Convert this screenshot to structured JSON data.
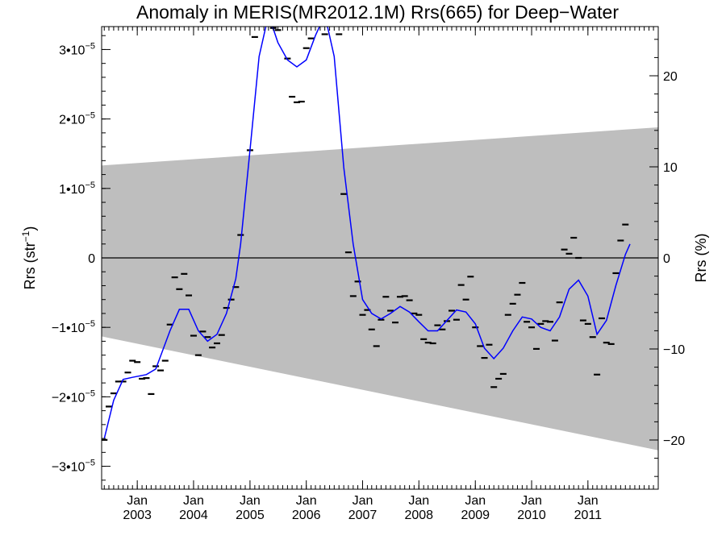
{
  "chart_data": {
    "type": "scatter",
    "title": "Anomaly in MERIS(MR2012.1M) Rrs(665) for Deep−Water",
    "ylabel": "Rrs (str",
    "ylabel_sup": "−1",
    "ylabel_close": ")",
    "y2label": "Rrs (%)",
    "xlim": [
      "2002-05-15",
      "2012-04-01"
    ],
    "ylim": [
      -3.33e-05,
      3.33e-05
    ],
    "y2lim": [
      -25.4,
      25.4
    ],
    "x_ticks": [
      {
        "date": "2003-01-01",
        "month": "Jan",
        "year": "2003"
      },
      {
        "date": "2004-01-01",
        "month": "Jan",
        "year": "2004"
      },
      {
        "date": "2005-01-01",
        "month": "Jan",
        "year": "2005"
      },
      {
        "date": "2006-01-01",
        "month": "Jan",
        "year": "2006"
      },
      {
        "date": "2007-01-01",
        "month": "Jan",
        "year": "2007"
      },
      {
        "date": "2008-01-01",
        "month": "Jan",
        "year": "2008"
      },
      {
        "date": "2009-01-01",
        "month": "Jan",
        "year": "2009"
      },
      {
        "date": "2010-01-01",
        "month": "Jan",
        "year": "2010"
      },
      {
        "date": "2011-01-01",
        "month": "Jan",
        "year": "2011"
      }
    ],
    "y_ticks": [
      {
        "value": 3e-05,
        "label": "3•10",
        "exp": "−5"
      },
      {
        "value": 2e-05,
        "label": "2•10",
        "exp": "−5"
      },
      {
        "value": 1e-05,
        "label": "1•10",
        "exp": "−5"
      },
      {
        "value": 0,
        "label": "0",
        "exp": ""
      },
      {
        "value": -1e-05,
        "label": "−1•10",
        "exp": "−5"
      },
      {
        "value": -2e-05,
        "label": "−2•10",
        "exp": "−5"
      },
      {
        "value": -3e-05,
        "label": "−3•10",
        "exp": "−5"
      }
    ],
    "y2_ticks": [
      {
        "value": 20,
        "label": "20"
      },
      {
        "value": 10,
        "label": "10"
      },
      {
        "value": 0,
        "label": "0"
      },
      {
        "value": -10,
        "label": "−10"
      },
      {
        "value": -20,
        "label": "−20"
      }
    ],
    "band": {
      "start": "2002-05-15",
      "end": "2012-04-01",
      "upper": [
        1.33e-05,
        1.88e-05
      ],
      "lower": [
        -1.13e-05,
        -2.77e-05
      ],
      "color": "#bebebe"
    },
    "zero_line": 0,
    "series": [
      {
        "kind": "markers",
        "color": "#000000",
        "points": [
          [
            "2002-06-01",
            -2.62e-05
          ],
          [
            "2002-07-01",
            -2.14e-05
          ],
          [
            "2002-08-01",
            -1.95e-05
          ],
          [
            "2002-09-01",
            -1.78e-05
          ],
          [
            "2002-10-01",
            -1.78e-05
          ],
          [
            "2002-11-01",
            -1.65e-05
          ],
          [
            "2002-12-01",
            -1.48e-05
          ],
          [
            "2003-01-01",
            -1.5e-05
          ],
          [
            "2003-02-01",
            -1.74e-05
          ],
          [
            "2003-03-01",
            -1.73e-05
          ],
          [
            "2003-04-01",
            -1.96e-05
          ],
          [
            "2003-05-01",
            -1.56e-05
          ],
          [
            "2003-06-01",
            -1.62e-05
          ],
          [
            "2003-07-01",
            -1.48e-05
          ],
          [
            "2003-08-01",
            -9.6e-06
          ],
          [
            "2003-09-01",
            -2.8e-06
          ],
          [
            "2003-10-01",
            -4.5e-06
          ],
          [
            "2003-11-01",
            -2.3e-06
          ],
          [
            "2003-12-01",
            -5.4e-06
          ],
          [
            "2004-01-01",
            -1.12e-05
          ],
          [
            "2004-02-01",
            -1.4e-05
          ],
          [
            "2004-03-01",
            -1.06e-05
          ],
          [
            "2004-04-01",
            -1.14e-05
          ],
          [
            "2004-05-01",
            -1.29e-05
          ],
          [
            "2004-06-01",
            -1.23e-05
          ],
          [
            "2004-07-01",
            -1.11e-05
          ],
          [
            "2004-08-01",
            -7.2e-06
          ],
          [
            "2004-09-01",
            -6e-06
          ],
          [
            "2004-10-01",
            -4.2e-06
          ],
          [
            "2004-11-01",
            3.3e-06
          ],
          [
            "2005-01-01",
            1.55e-05
          ],
          [
            "2005-02-01",
            3.18e-05
          ],
          [
            "2005-04-01",
            3.43e-05
          ],
          [
            "2005-06-01",
            3.31e-05
          ],
          [
            "2005-07-01",
            3.28e-05
          ],
          [
            "2005-09-01",
            2.87e-05
          ],
          [
            "2005-10-01",
            2.32e-05
          ],
          [
            "2005-11-01",
            2.24e-05
          ],
          [
            "2005-12-01",
            2.25e-05
          ],
          [
            "2006-01-01",
            3.02e-05
          ],
          [
            "2006-02-01",
            3.16e-05
          ],
          [
            "2006-05-01",
            3.22e-05
          ],
          [
            "2006-08-01",
            3.22e-05
          ],
          [
            "2006-09-01",
            9.2e-06
          ],
          [
            "2006-10-01",
            8e-07
          ],
          [
            "2006-11-01",
            -5.5e-06
          ],
          [
            "2006-12-01",
            -3.4e-06
          ],
          [
            "2007-01-01",
            -8.2e-06
          ],
          [
            "2007-02-01",
            -7.5e-06
          ],
          [
            "2007-03-01",
            -1.03e-05
          ],
          [
            "2007-04-01",
            -1.27e-05
          ],
          [
            "2007-05-01",
            -8.9e-06
          ],
          [
            "2007-06-01",
            -5.6e-06
          ],
          [
            "2007-07-01",
            -7.6e-06
          ],
          [
            "2007-08-01",
            -9.3e-06
          ],
          [
            "2007-09-01",
            -5.6e-06
          ],
          [
            "2007-10-01",
            -5.5e-06
          ],
          [
            "2007-11-01",
            -6.1e-06
          ],
          [
            "2007-12-01",
            -8e-06
          ],
          [
            "2008-01-01",
            -8.2e-06
          ],
          [
            "2008-02-01",
            -1.17e-05
          ],
          [
            "2008-03-01",
            -1.22e-05
          ],
          [
            "2008-04-01",
            -1.23e-05
          ],
          [
            "2008-05-01",
            -9.7e-06
          ],
          [
            "2008-06-01",
            -1.03e-05
          ],
          [
            "2008-07-01",
            -9.1e-06
          ],
          [
            "2008-08-01",
            -7.6e-06
          ],
          [
            "2008-09-01",
            -8.9e-06
          ],
          [
            "2008-10-01",
            -3.9e-06
          ],
          [
            "2008-11-01",
            -6e-06
          ],
          [
            "2008-12-01",
            -2.7e-06
          ],
          [
            "2009-01-01",
            -1e-05
          ],
          [
            "2009-02-01",
            -1.27e-05
          ],
          [
            "2009-03-01",
            -1.44e-05
          ],
          [
            "2009-04-01",
            -1.25e-05
          ],
          [
            "2009-05-01",
            -1.86e-05
          ],
          [
            "2009-06-01",
            -1.74e-05
          ],
          [
            "2009-07-01",
            -1.67e-05
          ],
          [
            "2009-08-01",
            -8.2e-06
          ],
          [
            "2009-09-01",
            -6.6e-06
          ],
          [
            "2009-10-01",
            -5.3e-06
          ],
          [
            "2009-11-01",
            -3.6e-06
          ],
          [
            "2009-12-01",
            -9.2e-06
          ],
          [
            "2010-01-01",
            -1e-05
          ],
          [
            "2010-02-01",
            -1.31e-05
          ],
          [
            "2010-03-01",
            -9.5e-06
          ],
          [
            "2010-04-01",
            -9.1e-06
          ],
          [
            "2010-05-01",
            -9.2e-06
          ],
          [
            "2010-06-01",
            -1.19e-05
          ],
          [
            "2010-07-01",
            -6.4e-06
          ],
          [
            "2010-08-01",
            1.2e-06
          ],
          [
            "2010-09-01",
            6e-07
          ],
          [
            "2010-10-01",
            2.9e-06
          ],
          [
            "2010-11-01",
            0.0
          ],
          [
            "2010-12-01",
            -9e-06
          ],
          [
            "2011-01-01",
            -9.5e-06
          ],
          [
            "2011-02-01",
            -1.14e-05
          ],
          [
            "2011-03-01",
            -1.68e-05
          ],
          [
            "2011-04-01",
            -8.7e-06
          ],
          [
            "2011-05-01",
            -1.22e-05
          ],
          [
            "2011-06-01",
            -1.24e-05
          ],
          [
            "2011-07-01",
            -2.2e-06
          ],
          [
            "2011-08-01",
            2.5e-06
          ],
          [
            "2011-09-01",
            4.8e-06
          ]
        ]
      },
      {
        "kind": "line",
        "color": "#0000ff",
        "points": [
          [
            "2002-06-01",
            -2.6e-05
          ],
          [
            "2002-08-01",
            -2.05e-05
          ],
          [
            "2002-10-01",
            -1.75e-05
          ],
          [
            "2002-12-01",
            -1.72e-05
          ],
          [
            "2003-03-01",
            -1.68e-05
          ],
          [
            "2003-05-01",
            -1.6e-05
          ],
          [
            "2003-08-01",
            -1.05e-05
          ],
          [
            "2003-10-01",
            -7.4e-06
          ],
          [
            "2003-12-01",
            -7.4e-06
          ],
          [
            "2004-02-01",
            -1.05e-05
          ],
          [
            "2004-04-01",
            -1.2e-05
          ],
          [
            "2004-06-01",
            -1.1e-05
          ],
          [
            "2004-08-01",
            -8e-06
          ],
          [
            "2004-10-01",
            -3e-06
          ],
          [
            "2004-11-01",
            2e-06
          ],
          [
            "2005-01-01",
            1.55e-05
          ],
          [
            "2005-03-01",
            2.9e-05
          ],
          [
            "2005-05-01",
            3.5e-05
          ],
          [
            "2005-07-01",
            3.1e-05
          ],
          [
            "2005-09-01",
            2.85e-05
          ],
          [
            "2005-11-01",
            2.75e-05
          ],
          [
            "2006-01-01",
            2.85e-05
          ],
          [
            "2006-03-01",
            3.2e-05
          ],
          [
            "2006-05-01",
            3.5e-05
          ],
          [
            "2006-07-01",
            2.9e-05
          ],
          [
            "2006-09-01",
            1.3e-05
          ],
          [
            "2006-11-01",
            2e-06
          ],
          [
            "2007-01-01",
            -6e-06
          ],
          [
            "2007-03-01",
            -8e-06
          ],
          [
            "2007-05-01",
            -8.8e-06
          ],
          [
            "2007-07-01",
            -8e-06
          ],
          [
            "2007-09-01",
            -7e-06
          ],
          [
            "2007-11-01",
            -7.8e-06
          ],
          [
            "2008-01-01",
            -9.2e-06
          ],
          [
            "2008-03-01",
            -1.05e-05
          ],
          [
            "2008-05-01",
            -1.05e-05
          ],
          [
            "2008-07-01",
            -9e-06
          ],
          [
            "2008-09-01",
            -7.5e-06
          ],
          [
            "2008-11-01",
            -7.8e-06
          ],
          [
            "2009-01-01",
            -9.5e-06
          ],
          [
            "2009-03-01",
            -1.3e-05
          ],
          [
            "2009-05-01",
            -1.45e-05
          ],
          [
            "2009-07-01",
            -1.3e-05
          ],
          [
            "2009-09-01",
            -1.05e-05
          ],
          [
            "2009-11-01",
            -8.5e-06
          ],
          [
            "2010-01-01",
            -8.8e-06
          ],
          [
            "2010-03-01",
            -1e-05
          ],
          [
            "2010-05-01",
            -1.05e-05
          ],
          [
            "2010-07-01",
            -8.5e-06
          ],
          [
            "2010-09-01",
            -4.5e-06
          ],
          [
            "2010-11-01",
            -3.2e-06
          ],
          [
            "2011-01-01",
            -5.5e-06
          ],
          [
            "2011-03-01",
            -1.1e-05
          ],
          [
            "2011-05-01",
            -9e-06
          ],
          [
            "2011-07-01",
            -4e-06
          ],
          [
            "2011-09-01",
            5e-07
          ],
          [
            "2011-10-01",
            2e-06
          ]
        ]
      }
    ]
  }
}
